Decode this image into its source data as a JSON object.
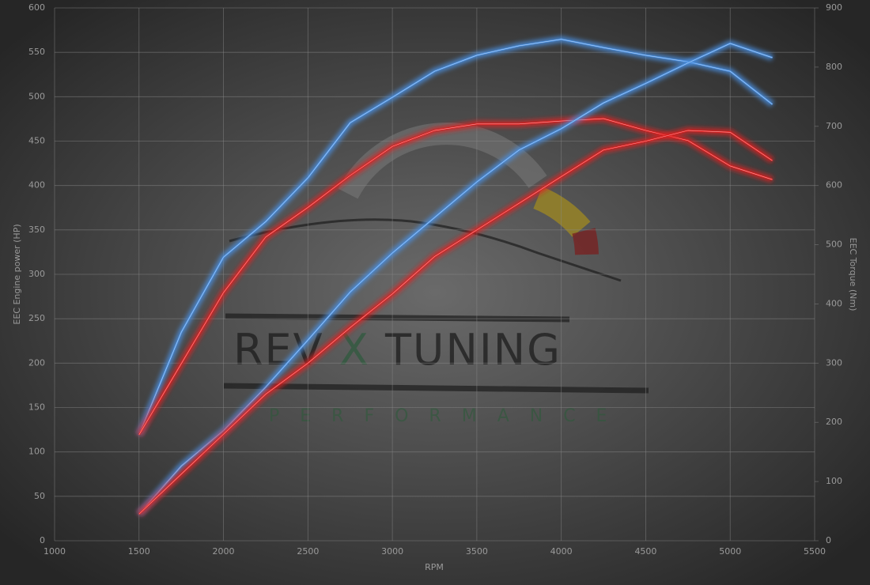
{
  "chart_data": {
    "type": "line",
    "x_label": "RPM",
    "y_label": "EEC Engine power (HP)",
    "y2_label": "EEC Torque (Nm)",
    "watermark": [
      "REV",
      "X",
      "TUNING"
    ],
    "watermark_subtitle": "PERFORMANCE",
    "x": [
      1500,
      1750,
      2000,
      2250,
      2500,
      2750,
      3000,
      3250,
      3500,
      3750,
      4000,
      4250,
      4500,
      4750,
      5000,
      5250
    ],
    "series": [
      {
        "color": "#4a90e2",
        "axis": "y2",
        "values": [
          179,
          352,
          479,
          539,
          613,
          706,
          749,
          793,
          820,
          836,
          847,
          833,
          820,
          809,
          793,
          737
        ]
      },
      {
        "color": "#e02020",
        "axis": "y2",
        "values": [
          179,
          299,
          419,
          513,
          563,
          617,
          666,
          693,
          704,
          704,
          709,
          713,
          693,
          676,
          633,
          610
        ]
      },
      {
        "color": "#4a90e2",
        "values": [
          30,
          84,
          124,
          173,
          226,
          280,
          324,
          364,
          404,
          440,
          464,
          493,
          515,
          538,
          560,
          544
        ]
      },
      {
        "color": "#e02020",
        "values": [
          30,
          75,
          120,
          165,
          200,
          240,
          278,
          320,
          350,
          380,
          410,
          440,
          450,
          462,
          460,
          428
        ]
      }
    ],
    "xlim": [
      1000,
      5500
    ],
    "xticks": [
      1000,
      1500,
      2000,
      2500,
      3000,
      3500,
      4000,
      4500,
      5000,
      5500
    ],
    "ylim": [
      0,
      600
    ],
    "yticks": [
      0,
      50,
      100,
      150,
      200,
      250,
      300,
      350,
      400,
      450,
      500,
      550,
      600
    ],
    "y2lim": [
      0,
      900
    ],
    "y2ticks": [
      0,
      100,
      200,
      300,
      400,
      500,
      600,
      700,
      800,
      900
    ],
    "grid": true
  }
}
